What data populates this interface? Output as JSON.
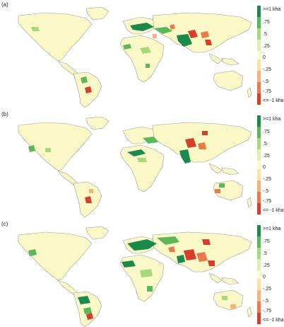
{
  "panels": [
    {
      "label": "(a)"
    },
    {
      "label": "(b)"
    },
    {
      "label": "(c)"
    }
  ],
  "legend": {
    "ticks": [
      ">=1 kha",
      ".75",
      ".5",
      ".25",
      "0",
      "-.25",
      "-.5",
      "-.75",
      "<= -1 kha"
    ],
    "colors": [
      "#1a8a4a",
      "#5bb85a",
      "#a6d97a",
      "#e0efb0",
      "#fcfbcc",
      "#fde1a0",
      "#f6b277",
      "#ea7a47",
      "#d6402a"
    ]
  },
  "colors": {
    "land_neutral": "#fbf8c8",
    "coast_line": "#9c9c9c",
    "gain_strong": "#1a8a4a",
    "gain_mid": "#5bb85a",
    "gain_light": "#a6d97a",
    "loss_light": "#f6b277",
    "loss_mid": "#ea7a47",
    "loss_strong": "#d6402a"
  }
}
